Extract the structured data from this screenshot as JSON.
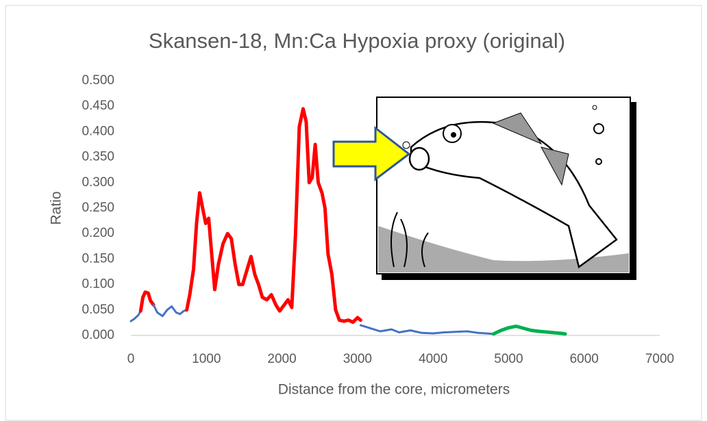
{
  "chart_data": {
    "type": "line",
    "title": "Skansen-18, Mn:Ca Hypoxia proxy (original)",
    "x_label": "Distance from the core, micrometers",
    "y_label": "Ratio",
    "xlim": [
      0,
      7000
    ],
    "xticks": [
      0,
      1000,
      2000,
      3000,
      4000,
      5000,
      6000,
      7000
    ],
    "ylim": [
      0,
      0.5
    ],
    "yticks": [
      {
        "value": 0,
        "label": "0.000"
      },
      {
        "value": 0.05,
        "label": "0.050"
      },
      {
        "value": 0.1,
        "label": "0.100"
      },
      {
        "value": 0.15,
        "label": "0.150"
      },
      {
        "value": 0.2,
        "label": "0.200"
      },
      {
        "value": 0.25,
        "label": "0.250"
      },
      {
        "value": 0.3,
        "label": "0.300"
      },
      {
        "value": 0.35,
        "label": "0.350"
      },
      {
        "value": 0.4,
        "label": "0.400"
      },
      {
        "value": 0.45,
        "label": "0.450"
      },
      {
        "value": 0.5,
        "label": "0.500"
      }
    ],
    "series": [
      {
        "color": "#4472c4",
        "x": [
          0,
          50,
          100,
          130
        ],
        "values": [
          0.028,
          0.033,
          0.04,
          0.048
        ]
      },
      {
        "color": "#ff0000",
        "x": [
          130,
          160,
          190,
          230,
          260,
          300
        ],
        "values": [
          0.048,
          0.075,
          0.085,
          0.083,
          0.068,
          0.06
        ]
      },
      {
        "color": "#4472c4",
        "x": [
          300,
          350,
          420,
          480,
          540,
          600,
          650,
          700,
          740
        ],
        "values": [
          0.06,
          0.045,
          0.038,
          0.05,
          0.057,
          0.045,
          0.042,
          0.048,
          0.05
        ]
      },
      {
        "color": "#ff0000",
        "x": [
          740,
          780,
          830,
          870,
          910,
          950,
          990,
          1030,
          1070,
          1110,
          1160,
          1220,
          1280,
          1330,
          1380,
          1430,
          1480,
          1540,
          1590,
          1640,
          1690,
          1740,
          1800,
          1860,
          1920,
          1970,
          2030,
          2080,
          2130,
          2180,
          2230,
          2280,
          2320,
          2360,
          2400,
          2440,
          2480,
          2530,
          2570,
          2610,
          2660,
          2710,
          2760,
          2820,
          2880,
          2940,
          3000,
          3040
        ],
        "values": [
          0.05,
          0.08,
          0.13,
          0.22,
          0.28,
          0.25,
          0.22,
          0.23,
          0.16,
          0.09,
          0.14,
          0.18,
          0.2,
          0.19,
          0.14,
          0.1,
          0.1,
          0.13,
          0.155,
          0.12,
          0.1,
          0.075,
          0.07,
          0.08,
          0.06,
          0.048,
          0.06,
          0.07,
          0.055,
          0.2,
          0.41,
          0.445,
          0.42,
          0.3,
          0.31,
          0.375,
          0.3,
          0.28,
          0.25,
          0.16,
          0.12,
          0.05,
          0.03,
          0.028,
          0.03,
          0.026,
          0.035,
          0.03
        ]
      },
      {
        "color": "#4472c4",
        "x": [
          3040,
          3150,
          3300,
          3450,
          3550,
          3700,
          3850,
          4000,
          4150,
          4300,
          4450,
          4600,
          4800
        ],
        "values": [
          0.02,
          0.015,
          0.008,
          0.012,
          0.006,
          0.01,
          0.005,
          0.004,
          0.006,
          0.007,
          0.008,
          0.005,
          0.003
        ]
      },
      {
        "color": "#00b050",
        "x": [
          4800,
          4900,
          5000,
          5100,
          5200,
          5300,
          5400,
          5550,
          5700,
          5750
        ],
        "values": [
          0.003,
          0.01,
          0.015,
          0.018,
          0.014,
          0.01,
          0.008,
          0.006,
          0.004,
          0.003
        ]
      }
    ]
  }
}
